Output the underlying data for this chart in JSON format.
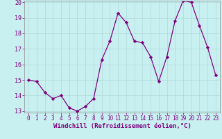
{
  "x": [
    0,
    1,
    2,
    3,
    4,
    5,
    6,
    7,
    8,
    9,
    10,
    11,
    12,
    13,
    14,
    15,
    16,
    17,
    18,
    19,
    20,
    21,
    22,
    23
  ],
  "y": [
    15.0,
    14.9,
    14.2,
    13.8,
    14.0,
    13.2,
    13.0,
    13.3,
    13.8,
    16.3,
    17.5,
    19.3,
    18.7,
    17.5,
    17.4,
    16.5,
    14.9,
    16.5,
    18.8,
    20.1,
    20.0,
    18.5,
    17.1,
    15.3
  ],
  "line_color": "#800080",
  "marker": "D",
  "marker_size": 2.2,
  "bg_color": "#c8f0f0",
  "grid_color": "#b0d8d8",
  "xlabel": "Windchill (Refroidissement éolien,°C)",
  "ylim": [
    13,
    20
  ],
  "xlim": [
    -0.5,
    23.5
  ],
  "yticks": [
    13,
    14,
    15,
    16,
    17,
    18,
    19,
    20
  ],
  "xticks": [
    0,
    1,
    2,
    3,
    4,
    5,
    6,
    7,
    8,
    9,
    10,
    11,
    12,
    13,
    14,
    15,
    16,
    17,
    18,
    19,
    20,
    21,
    22,
    23
  ],
  "tick_color": "#800080",
  "tick_fontsize": 5.5,
  "xlabel_fontsize": 6.5,
  "spine_color": "#888888",
  "linewidth": 0.9
}
